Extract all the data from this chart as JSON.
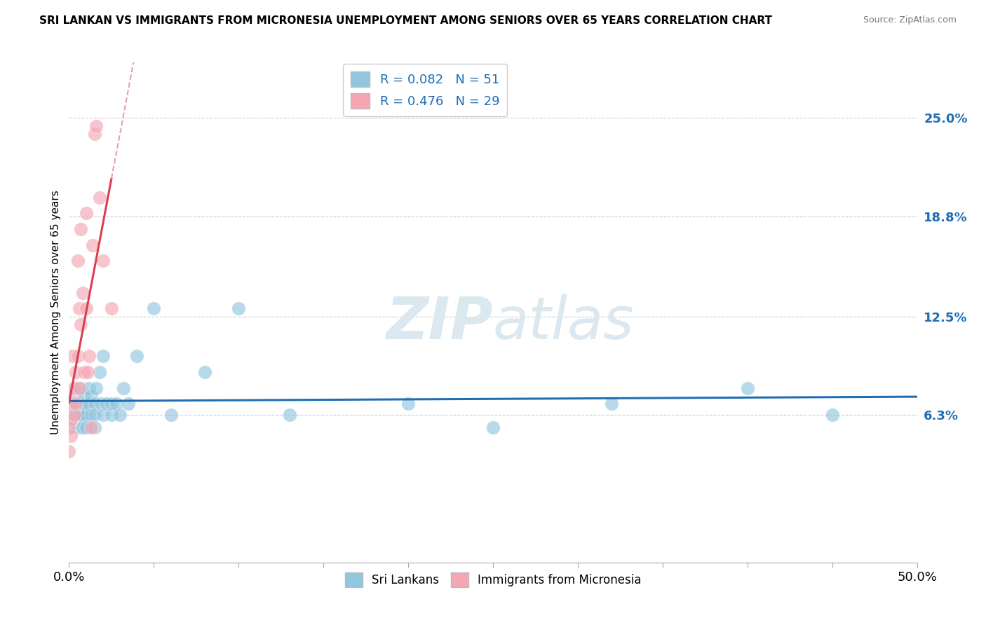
{
  "title": "SRI LANKAN VS IMMIGRANTS FROM MICRONESIA UNEMPLOYMENT AMONG SENIORS OVER 65 YEARS CORRELATION CHART",
  "source": "Source: ZipAtlas.com",
  "ylabel": "Unemployment Among Seniors over 65 years",
  "xlim": [
    0.0,
    0.5
  ],
  "ylim": [
    -0.03,
    0.285
  ],
  "yticks": [
    0.063,
    0.125,
    0.188,
    0.25
  ],
  "ytick_labels": [
    "6.3%",
    "12.5%",
    "18.8%",
    "25.0%"
  ],
  "xticks": [
    0.0,
    0.05,
    0.1,
    0.15,
    0.2,
    0.25,
    0.3,
    0.35,
    0.4,
    0.45,
    0.5
  ],
  "xtick_labels": [
    "0.0%",
    "",
    "",
    "",
    "",
    "",
    "",
    "",
    "",
    "",
    "50.0%"
  ],
  "legend_r1": "R = 0.082",
  "legend_n1": "N = 51",
  "legend_r2": "R = 0.476",
  "legend_n2": "N = 29",
  "color_blue": "#92c5de",
  "color_pink": "#f4a6b2",
  "line_blue": "#1f6eb5",
  "line_pink": "#d9404f",
  "line_pink_dashed_color": "#e8a0aa",
  "watermark_color": "#dce8f0",
  "sri_lankan_x": [
    0.0,
    0.0,
    0.002,
    0.003,
    0.003,
    0.004,
    0.005,
    0.005,
    0.005,
    0.006,
    0.006,
    0.007,
    0.007,
    0.008,
    0.008,
    0.008,
    0.009,
    0.009,
    0.01,
    0.01,
    0.01,
    0.012,
    0.012,
    0.013,
    0.013,
    0.015,
    0.015,
    0.015,
    0.016,
    0.018,
    0.019,
    0.02,
    0.02,
    0.022,
    0.025,
    0.025,
    0.028,
    0.03,
    0.032,
    0.035,
    0.04,
    0.05,
    0.06,
    0.08,
    0.1,
    0.13,
    0.2,
    0.25,
    0.32,
    0.4,
    0.45
  ],
  "sri_lankan_y": [
    0.063,
    0.055,
    0.07,
    0.075,
    0.063,
    0.08,
    0.063,
    0.055,
    0.07,
    0.063,
    0.07,
    0.063,
    0.08,
    0.063,
    0.07,
    0.055,
    0.07,
    0.075,
    0.063,
    0.07,
    0.055,
    0.07,
    0.08,
    0.063,
    0.075,
    0.07,
    0.063,
    0.055,
    0.08,
    0.09,
    0.07,
    0.1,
    0.063,
    0.07,
    0.063,
    0.07,
    0.07,
    0.063,
    0.08,
    0.07,
    0.1,
    0.13,
    0.063,
    0.09,
    0.13,
    0.063,
    0.07,
    0.055,
    0.07,
    0.08,
    0.063
  ],
  "micronesia_x": [
    0.0,
    0.0,
    0.001,
    0.001,
    0.002,
    0.002,
    0.003,
    0.003,
    0.004,
    0.004,
    0.005,
    0.005,
    0.006,
    0.006,
    0.007,
    0.007,
    0.008,
    0.009,
    0.01,
    0.01,
    0.011,
    0.012,
    0.013,
    0.014,
    0.015,
    0.016,
    0.018,
    0.02,
    0.025
  ],
  "micronesia_y": [
    0.055,
    0.04,
    0.06,
    0.05,
    0.1,
    0.07,
    0.08,
    0.063,
    0.09,
    0.07,
    0.16,
    0.1,
    0.13,
    0.08,
    0.18,
    0.12,
    0.14,
    0.09,
    0.19,
    0.13,
    0.09,
    0.1,
    0.055,
    0.17,
    0.24,
    0.245,
    0.2,
    0.16,
    0.13
  ],
  "pink_line_x0": 0.0,
  "pink_line_x1": 0.025,
  "pink_line_dashed_x0": 0.025,
  "pink_line_dashed_x1": 0.35
}
